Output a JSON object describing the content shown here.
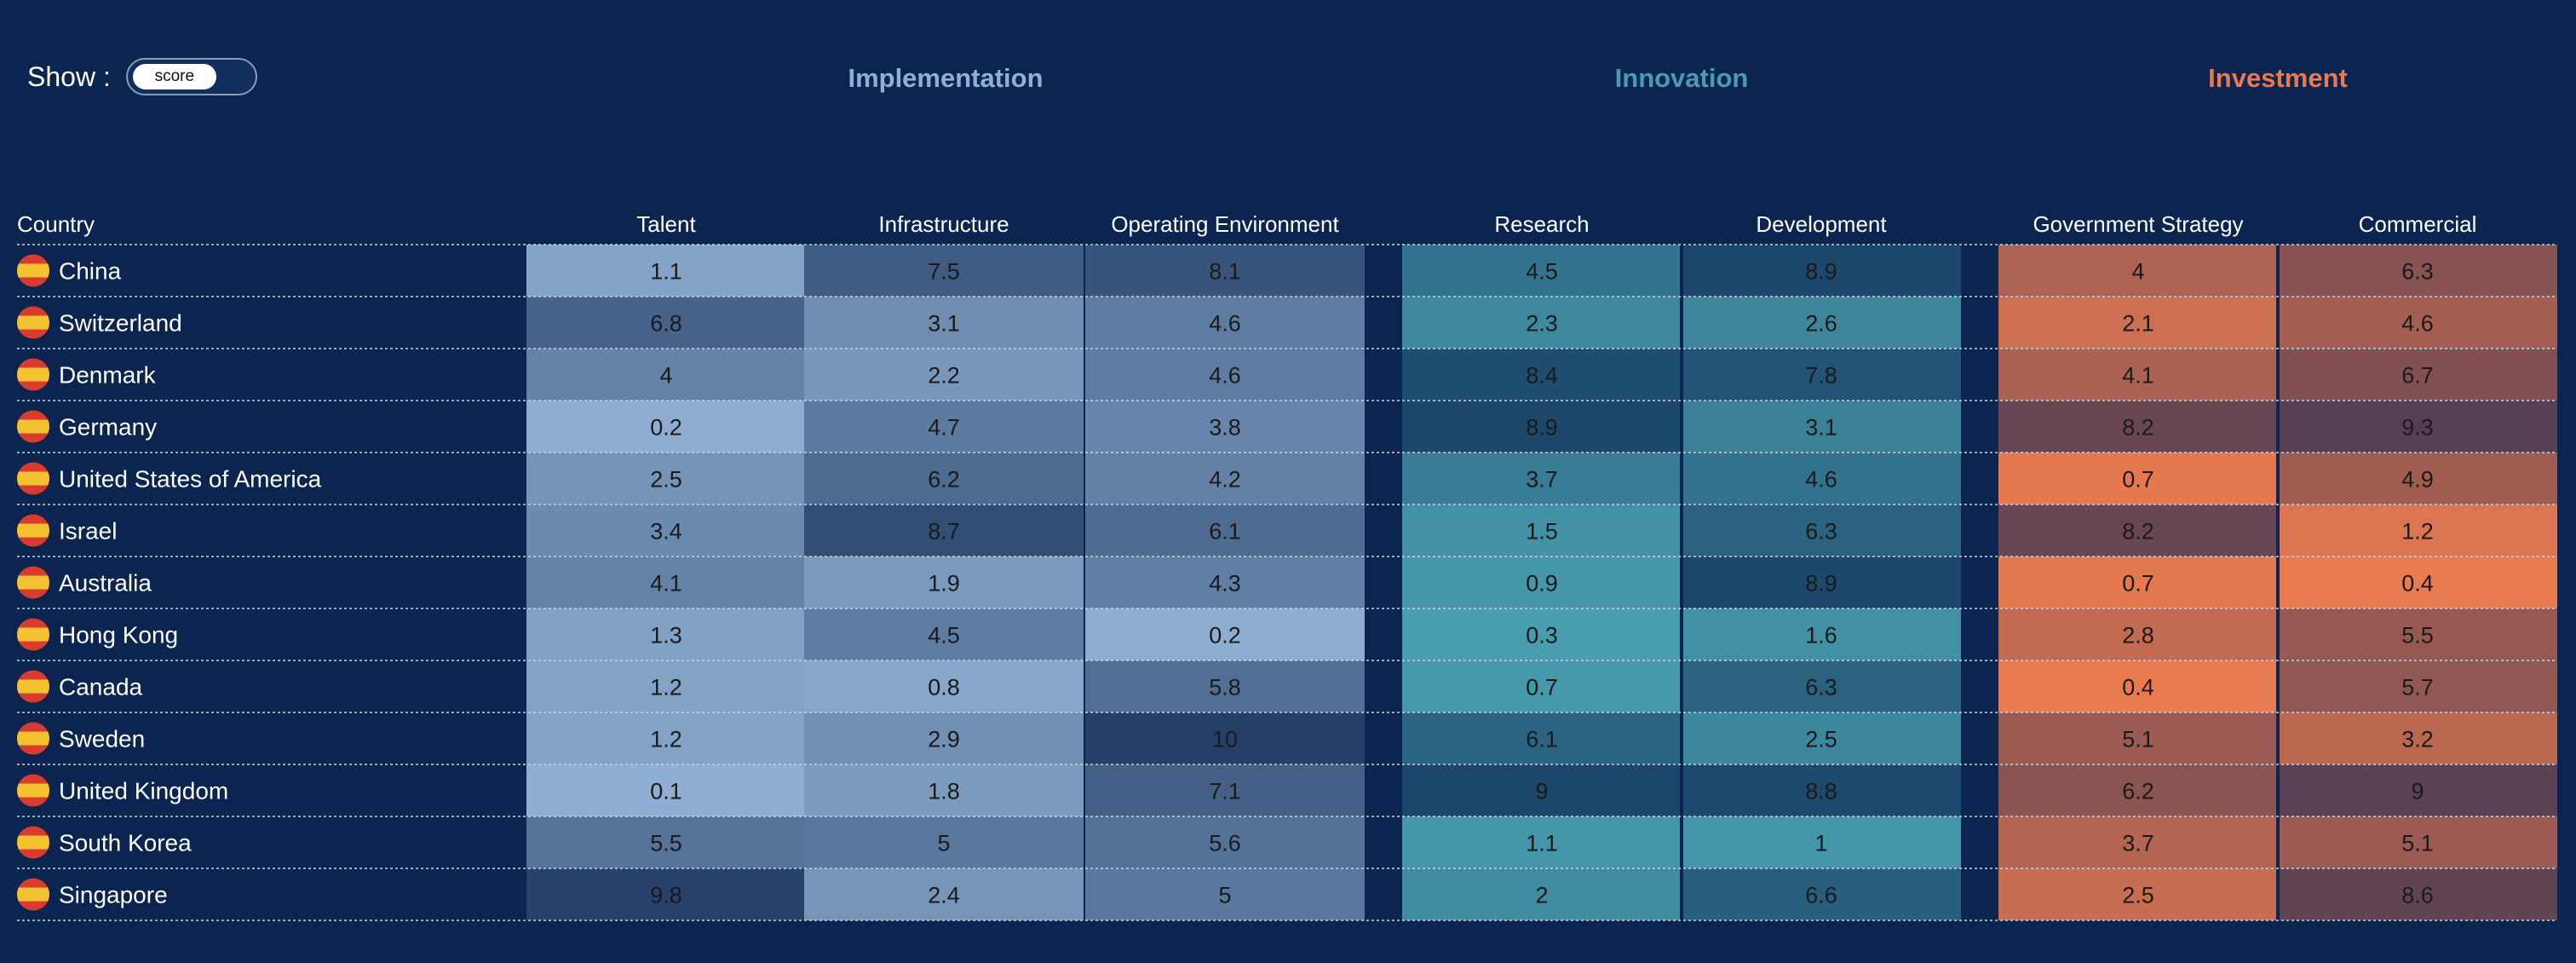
{
  "controls": {
    "show_label": "Show :",
    "toggle_value": "score"
  },
  "groups": [
    {
      "name": "Implementation",
      "color": "#8fb0d3"
    },
    {
      "name": "Innovation",
      "color": "#4a9bb0"
    },
    {
      "name": "Investment",
      "color": "#e87a4f"
    }
  ],
  "chart_data": {
    "type": "heatmap",
    "row_header": "Country",
    "columns": [
      {
        "name": "Talent",
        "group": "Implementation"
      },
      {
        "name": "Infrastructure",
        "group": "Implementation"
      },
      {
        "name": "Operating Environment",
        "group": "Implementation"
      },
      {
        "name": "Research",
        "group": "Innovation"
      },
      {
        "name": "Development",
        "group": "Innovation"
      },
      {
        "name": "Government Strategy",
        "group": "Investment"
      },
      {
        "name": "Commercial",
        "group": "Investment"
      }
    ],
    "rows": [
      {
        "country": "China",
        "values": [
          1.1,
          7.5,
          8.1,
          4.5,
          8.9,
          4,
          6.3
        ]
      },
      {
        "country": "Switzerland",
        "values": [
          6.8,
          3.1,
          4.6,
          2.3,
          2.6,
          2.1,
          4.6
        ]
      },
      {
        "country": "Denmark",
        "values": [
          4,
          2.2,
          4.6,
          8.4,
          7.8,
          4.1,
          6.7
        ]
      },
      {
        "country": "Germany",
        "values": [
          0.2,
          4.7,
          3.8,
          8.9,
          3.1,
          8.2,
          9.3
        ]
      },
      {
        "country": "United States of America",
        "values": [
          2.5,
          6.2,
          4.2,
          3.7,
          4.6,
          0.7,
          4.9
        ]
      },
      {
        "country": "Israel",
        "values": [
          3.4,
          8.7,
          6.1,
          1.5,
          6.3,
          8.2,
          1.2
        ]
      },
      {
        "country": "Australia",
        "values": [
          4.1,
          1.9,
          4.3,
          0.9,
          8.9,
          0.7,
          0.4
        ]
      },
      {
        "country": "Hong Kong",
        "values": [
          1.3,
          4.5,
          0.2,
          0.3,
          1.6,
          2.8,
          5.5
        ]
      },
      {
        "country": "Canada",
        "values": [
          1.2,
          0.8,
          5.8,
          0.7,
          6.3,
          0.4,
          5.7
        ]
      },
      {
        "country": "Sweden",
        "values": [
          1.2,
          2.9,
          10,
          6.1,
          2.5,
          5.1,
          3.2
        ]
      },
      {
        "country": "United Kingdom",
        "values": [
          0.1,
          1.8,
          7.1,
          9,
          8.8,
          6.2,
          9
        ]
      },
      {
        "country": "South Korea",
        "values": [
          5.5,
          5,
          5.6,
          1.1,
          1,
          3.7,
          5.1
        ]
      },
      {
        "country": "Singapore",
        "values": [
          9.8,
          2.4,
          5,
          2,
          6.6,
          2.5,
          8.6
        ]
      }
    ],
    "value_range": [
      0,
      10
    ],
    "color_scales": {
      "Implementation": {
        "low": "#8fb0d3",
        "high": "#253f66"
      },
      "Innovation": {
        "low": "#4aa0b0",
        "high": "#173d63"
      },
      "Investment": {
        "low": "#f07e50",
        "high": "#4a3a54"
      }
    },
    "flag_colors": {
      "outer": "#d83b30",
      "inner": "#f2c230"
    }
  }
}
